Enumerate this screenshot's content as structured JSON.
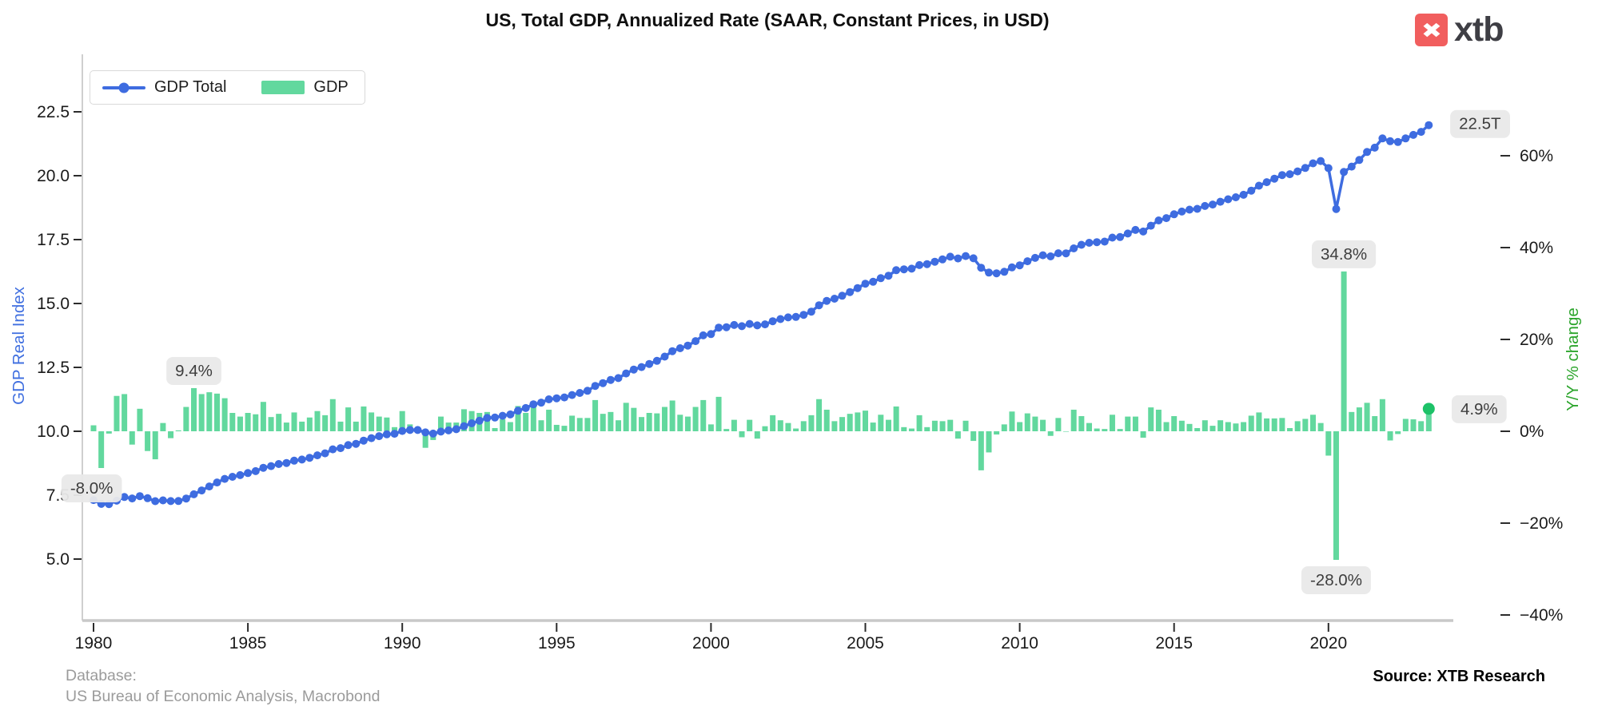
{
  "header": {
    "title": "US, Total GDP, Annualized Rate (SAAR, Constant Prices, in USD)"
  },
  "logo": {
    "mark": "✖",
    "text": "xtb",
    "box_color": "#f15e5e",
    "text_color": "#3e3e44"
  },
  "legend": {
    "items": [
      {
        "label": "GDP Total",
        "type": "line",
        "color": "#3e6ce0"
      },
      {
        "label": "GDP",
        "type": "bar",
        "color": "#62d89e"
      }
    ]
  },
  "footer": {
    "database_label": "Database:",
    "database_value": "US Bureau of Economic Analysis, Macrobond",
    "source": "Source: XTB Research"
  },
  "chart_data": {
    "type": "combo-line-bar",
    "title": "US, Total GDP, Annualized Rate (SAAR, Constant Prices, in USD)",
    "x": {
      "start": "1980Q1",
      "end": "2023Q2",
      "frequency": "quarterly",
      "tick_years": [
        1980,
        1985,
        1990,
        1995,
        2000,
        2005,
        2010,
        2015,
        2020
      ]
    },
    "left_axis": {
      "label": "GDP Real Index",
      "units": "USD trillions",
      "ticks": [
        5.0,
        7.5,
        10.0,
        12.5,
        15.0,
        17.5,
        20.0,
        22.5
      ],
      "color": "#4170e0"
    },
    "right_axis": {
      "label": "Y/Y % change",
      "tick_labels": [
        "−40%",
        "−20%",
        "0%",
        "20%",
        "40%",
        "60%"
      ],
      "tick_values": [
        -40,
        -20,
        0,
        20,
        40,
        60
      ],
      "color": "#2ca52c"
    },
    "series": [
      {
        "name": "GDP Total",
        "type": "line",
        "color": "#3e6ce0",
        "start_level_trillions": 7.31,
        "end_label": "22.5T"
      },
      {
        "name": "GDP",
        "type": "bar",
        "color": "#62d89e",
        "unit": "% annualized rate",
        "values": [
          1.3,
          -8.0,
          -0.5,
          7.7,
          8.1,
          -2.9,
          4.9,
          -4.3,
          -6.1,
          1.8,
          -1.5,
          0.2,
          5.3,
          9.4,
          8.1,
          8.5,
          8.2,
          7.2,
          4.0,
          3.2,
          4.0,
          3.7,
          6.4,
          3.1,
          3.8,
          1.9,
          4.1,
          2.1,
          3.0,
          4.4,
          3.5,
          7.0,
          2.1,
          5.2,
          2.1,
          5.4,
          4.1,
          3.2,
          3.0,
          0.9,
          4.4,
          1.5,
          0.0,
          -3.6,
          -1.9,
          3.2,
          1.9,
          1.9,
          4.8,
          4.4,
          4.0,
          4.2,
          0.7,
          2.6,
          2.0,
          5.5,
          4.0,
          5.5,
          2.4,
          4.7,
          1.4,
          1.2,
          3.4,
          2.9,
          2.9,
          6.8,
          3.8,
          4.2,
          2.4,
          6.2,
          5.1,
          3.1,
          4.0,
          3.9,
          5.3,
          6.7,
          3.6,
          3.2,
          5.3,
          6.8,
          1.5,
          7.5,
          0.5,
          2.5,
          -1.3,
          2.5,
          -1.6,
          1.1,
          3.5,
          2.4,
          1.8,
          0.6,
          2.2,
          3.5,
          7.0,
          4.7,
          2.2,
          3.1,
          3.8,
          4.1,
          4.5,
          1.9,
          3.6,
          2.5,
          5.4,
          0.9,
          0.6,
          3.5,
          0.9,
          2.3,
          2.2,
          2.5,
          -1.6,
          2.3,
          -2.1,
          -8.5,
          -4.6,
          -0.7,
          1.5,
          4.3,
          2.0,
          3.9,
          3.2,
          2.5,
          -1.0,
          2.9,
          -0.1,
          4.7,
          3.3,
          1.8,
          0.6,
          0.5,
          3.6,
          0.5,
          3.2,
          3.2,
          -1.4,
          5.2,
          4.7,
          2.0,
          3.3,
          2.3,
          1.6,
          0.7,
          2.4,
          1.2,
          2.4,
          2.0,
          1.7,
          2.0,
          3.4,
          4.1,
          2.8,
          2.8,
          2.9,
          0.7,
          2.2,
          2.7,
          3.6,
          1.8,
          -5.3,
          -28.0,
          34.8,
          4.2,
          5.2,
          6.2,
          3.3,
          7.0,
          -2.0,
          -0.6,
          2.7,
          2.6,
          2.2,
          4.9
        ]
      }
    ],
    "annotations": [
      {
        "text": "-8.0%",
        "bar_index": 1,
        "quarter": "1980Q2",
        "placement": "below",
        "dx": -12
      },
      {
        "text": "9.4%",
        "bar_index": 13,
        "quarter": "1983Q2",
        "placement": "above"
      },
      {
        "text": "-28.0%",
        "bar_index": 161,
        "quarter": "2020Q2",
        "placement": "below"
      },
      {
        "text": "34.8%",
        "bar_index": 162,
        "quarter": "2020Q3",
        "placement": "above"
      },
      {
        "text": "4.9%",
        "bar_index": 173,
        "quarter": "2023Q2",
        "placement": "right",
        "marker": "green-dot"
      },
      {
        "text": "22.5T",
        "placement": "line-end"
      }
    ],
    "marker_dot_color": "#1dc268",
    "annotation_style": {
      "bg": "#e9e9e9",
      "text_color": "#3d3d3d"
    },
    "layout": {
      "grid": false,
      "legend_position": "top-left",
      "background": "#ffffff"
    }
  }
}
